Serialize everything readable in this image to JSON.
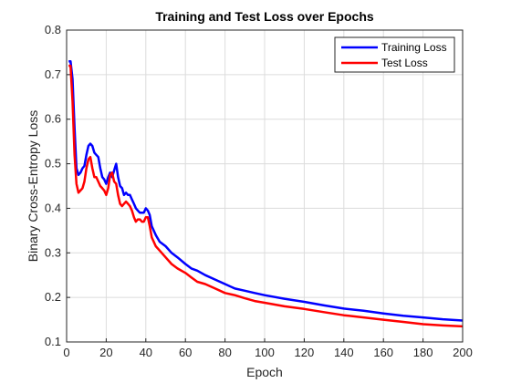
{
  "chart_data": {
    "type": "line",
    "title": "Training and Test Loss over Epochs",
    "xlabel": "Epoch",
    "ylabel": "Binary Cross-Entropy Loss",
    "xlim": [
      0,
      200
    ],
    "ylim": [
      0.1,
      0.8
    ],
    "xticks": [
      "0",
      "20",
      "40",
      "60",
      "80",
      "100",
      "120",
      "140",
      "160",
      "180",
      "200"
    ],
    "yticks": [
      "0.1",
      "0.2",
      "0.3",
      "0.4",
      "0.5",
      "0.6",
      "0.7",
      "0.8"
    ],
    "grid": true,
    "legend_position": "top-right",
    "series": [
      {
        "name": "Training Loss",
        "color": "#0000ff",
        "x": [
          1,
          2,
          3,
          4,
          5,
          6,
          7,
          8,
          9,
          10,
          11,
          12,
          13,
          14,
          15,
          16,
          17,
          18,
          19,
          20,
          21,
          22,
          23,
          24,
          25,
          26,
          27,
          28,
          29,
          30,
          31,
          32,
          33,
          34,
          35,
          36,
          37,
          38,
          39,
          40,
          41,
          42,
          43,
          45,
          47,
          50,
          53,
          56,
          60,
          63,
          66,
          70,
          75,
          80,
          85,
          90,
          95,
          100,
          110,
          120,
          130,
          140,
          150,
          160,
          170,
          180,
          190,
          200
        ],
        "y": [
          0.73,
          0.73,
          0.69,
          0.58,
          0.49,
          0.475,
          0.48,
          0.49,
          0.495,
          0.52,
          0.54,
          0.545,
          0.54,
          0.525,
          0.52,
          0.515,
          0.49,
          0.47,
          0.465,
          0.455,
          0.47,
          0.48,
          0.47,
          0.485,
          0.5,
          0.47,
          0.45,
          0.445,
          0.43,
          0.435,
          0.43,
          0.43,
          0.42,
          0.41,
          0.4,
          0.395,
          0.39,
          0.39,
          0.39,
          0.4,
          0.395,
          0.385,
          0.36,
          0.34,
          0.325,
          0.315,
          0.3,
          0.29,
          0.275,
          0.265,
          0.26,
          0.25,
          0.24,
          0.23,
          0.22,
          0.215,
          0.21,
          0.205,
          0.197,
          0.19,
          0.182,
          0.175,
          0.17,
          0.164,
          0.159,
          0.155,
          0.151,
          0.148
        ]
      },
      {
        "name": "Test Loss",
        "color": "#ff0000",
        "x": [
          1,
          2,
          3,
          4,
          5,
          6,
          7,
          8,
          9,
          10,
          11,
          12,
          13,
          14,
          15,
          16,
          17,
          18,
          19,
          20,
          21,
          22,
          23,
          24,
          25,
          26,
          27,
          28,
          29,
          30,
          31,
          32,
          33,
          34,
          35,
          36,
          37,
          38,
          39,
          40,
          41,
          42,
          43,
          45,
          47,
          50,
          53,
          56,
          60,
          63,
          66,
          70,
          75,
          80,
          85,
          90,
          95,
          100,
          110,
          120,
          130,
          140,
          150,
          160,
          170,
          180,
          190,
          200
        ],
        "y": [
          0.72,
          0.72,
          0.64,
          0.52,
          0.455,
          0.435,
          0.44,
          0.445,
          0.46,
          0.49,
          0.51,
          0.515,
          0.49,
          0.47,
          0.47,
          0.46,
          0.45,
          0.445,
          0.44,
          0.43,
          0.445,
          0.475,
          0.48,
          0.46,
          0.455,
          0.43,
          0.41,
          0.405,
          0.41,
          0.415,
          0.41,
          0.405,
          0.395,
          0.38,
          0.37,
          0.375,
          0.375,
          0.37,
          0.37,
          0.38,
          0.38,
          0.36,
          0.335,
          0.315,
          0.305,
          0.29,
          0.275,
          0.265,
          0.255,
          0.245,
          0.235,
          0.23,
          0.22,
          0.21,
          0.205,
          0.198,
          0.192,
          0.188,
          0.18,
          0.174,
          0.167,
          0.16,
          0.155,
          0.15,
          0.145,
          0.14,
          0.137,
          0.135
        ]
      }
    ]
  }
}
